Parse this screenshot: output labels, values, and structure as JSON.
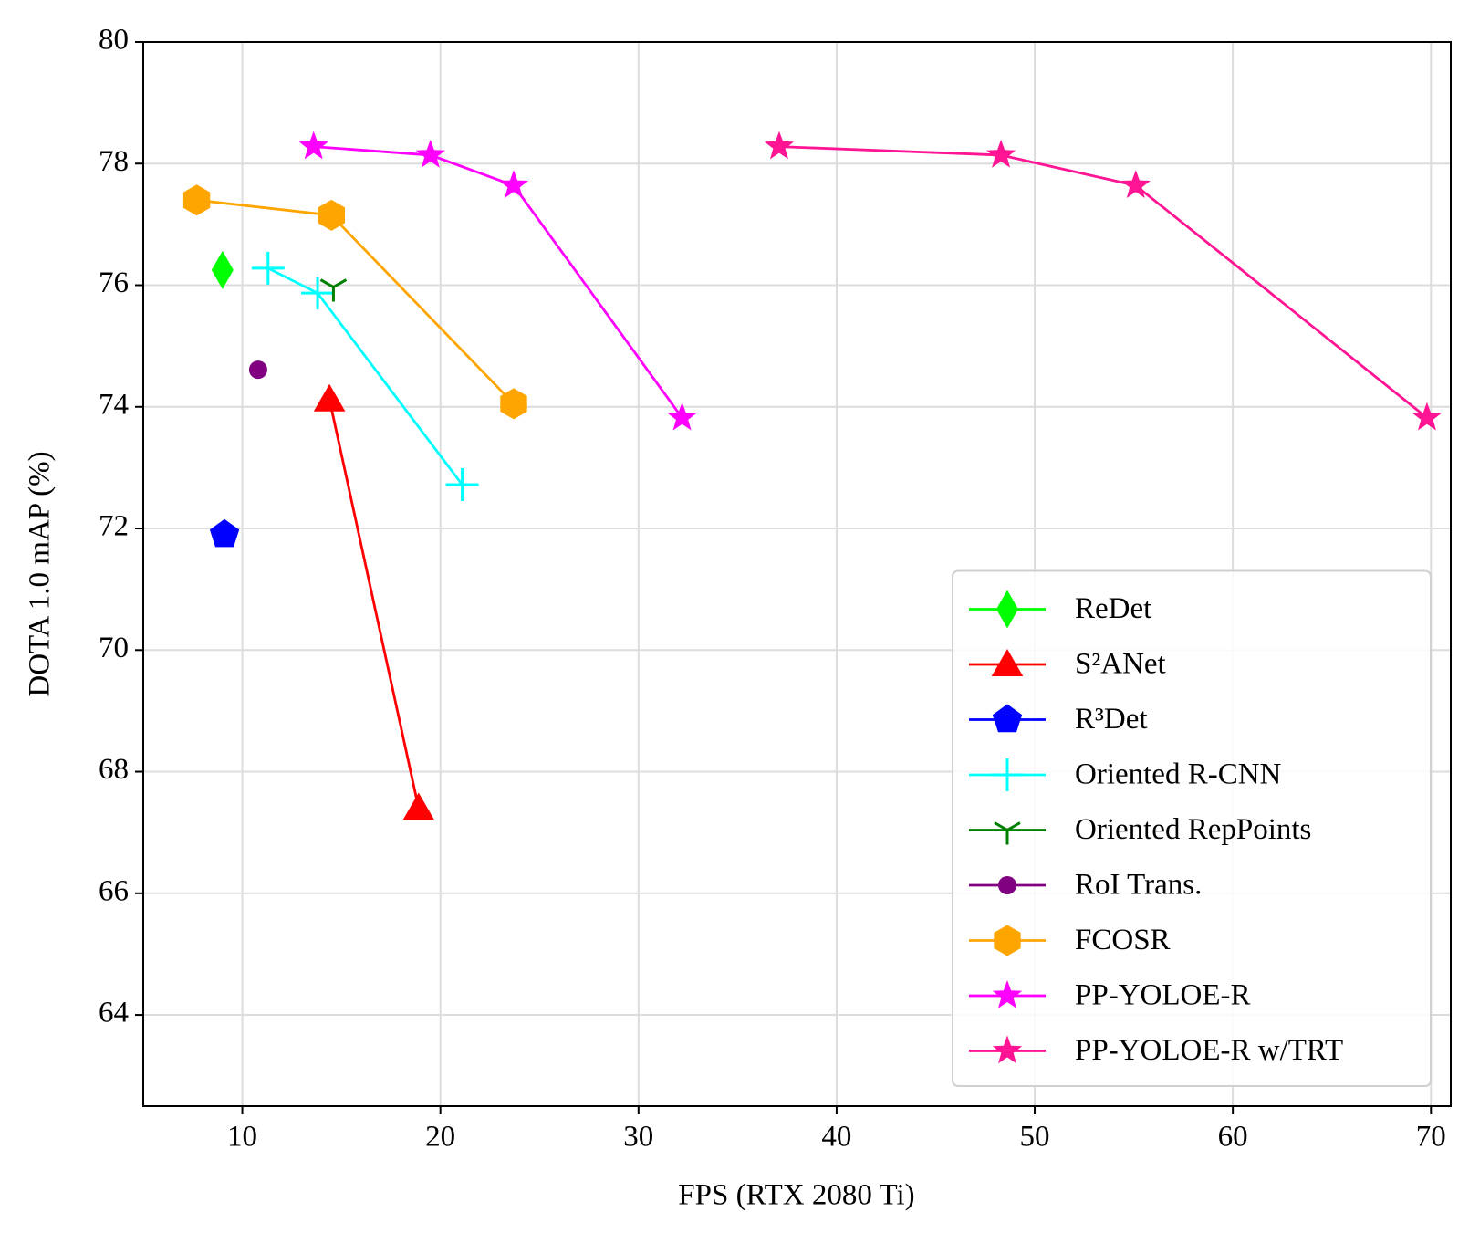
{
  "chart_data": {
    "type": "line",
    "x_label": "FPS (RTX 2080 Ti)",
    "y_label": "DOTA 1.0 mAP (%)",
    "xlim": [
      5,
      71
    ],
    "ylim": [
      62.5,
      80
    ],
    "xticks": [
      10,
      20,
      30,
      40,
      50,
      60,
      70
    ],
    "yticks": [
      64,
      66,
      68,
      70,
      72,
      74,
      76,
      78,
      80
    ],
    "grid": true,
    "legend": "lower right",
    "series": [
      {
        "name": "ReDet",
        "color": "#00ff00",
        "marker": "diamond",
        "x": [
          9.0
        ],
        "values": [
          76.25
        ]
      },
      {
        "name": "S²ANet",
        "color": "#ff0000",
        "marker": "triangle",
        "x": [
          14.4,
          18.9
        ],
        "values": [
          74.12,
          67.4
        ]
      },
      {
        "name": "R³Det",
        "color": "#0000ff",
        "marker": "pentagon",
        "x": [
          9.1
        ],
        "values": [
          71.9
        ]
      },
      {
        "name": "Oriented R-CNN",
        "color": "#00ffff",
        "marker": "plus",
        "x": [
          11.3,
          13.8,
          21.1
        ],
        "values": [
          76.28,
          75.87,
          72.72
        ]
      },
      {
        "name": "Oriented RepPoints",
        "color": "#008000",
        "marker": "tri_down",
        "x": [
          14.6
        ],
        "values": [
          75.97
        ]
      },
      {
        "name": "RoI Trans.",
        "color": "#800080",
        "marker": "circle",
        "x": [
          10.8
        ],
        "values": [
          74.61
        ]
      },
      {
        "name": "FCOSR",
        "color": "#ffa500",
        "marker": "hexagon",
        "x": [
          7.7,
          14.5,
          23.7
        ],
        "values": [
          77.4,
          77.15,
          74.05
        ]
      },
      {
        "name": "PP-YOLOE-R",
        "color": "#ff00ff",
        "marker": "star",
        "x": [
          13.6,
          19.5,
          23.7,
          32.2
        ],
        "values": [
          78.28,
          78.14,
          77.64,
          73.82
        ]
      },
      {
        "name": "PP-YOLOE-R w/TRT",
        "color": "#ff1493",
        "marker": "star",
        "x": [
          37.1,
          48.3,
          55.1,
          69.8
        ],
        "values": [
          78.28,
          78.14,
          77.64,
          73.82
        ]
      }
    ]
  }
}
